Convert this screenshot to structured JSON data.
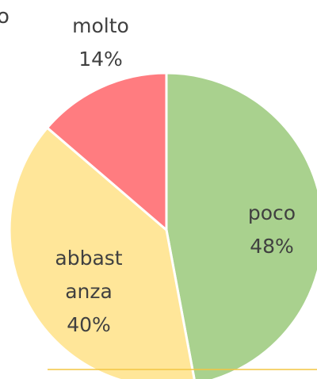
{
  "chart_data": {
    "type": "pie",
    "title": "o",
    "categories": [
      "poco",
      "abbastanza",
      "molto"
    ],
    "values": [
      48,
      40,
      14
    ],
    "value_labels": [
      "48%",
      "40%",
      "14%"
    ],
    "colors": [
      "#a9d18e",
      "#ffe699",
      "#ff7c80"
    ]
  }
}
